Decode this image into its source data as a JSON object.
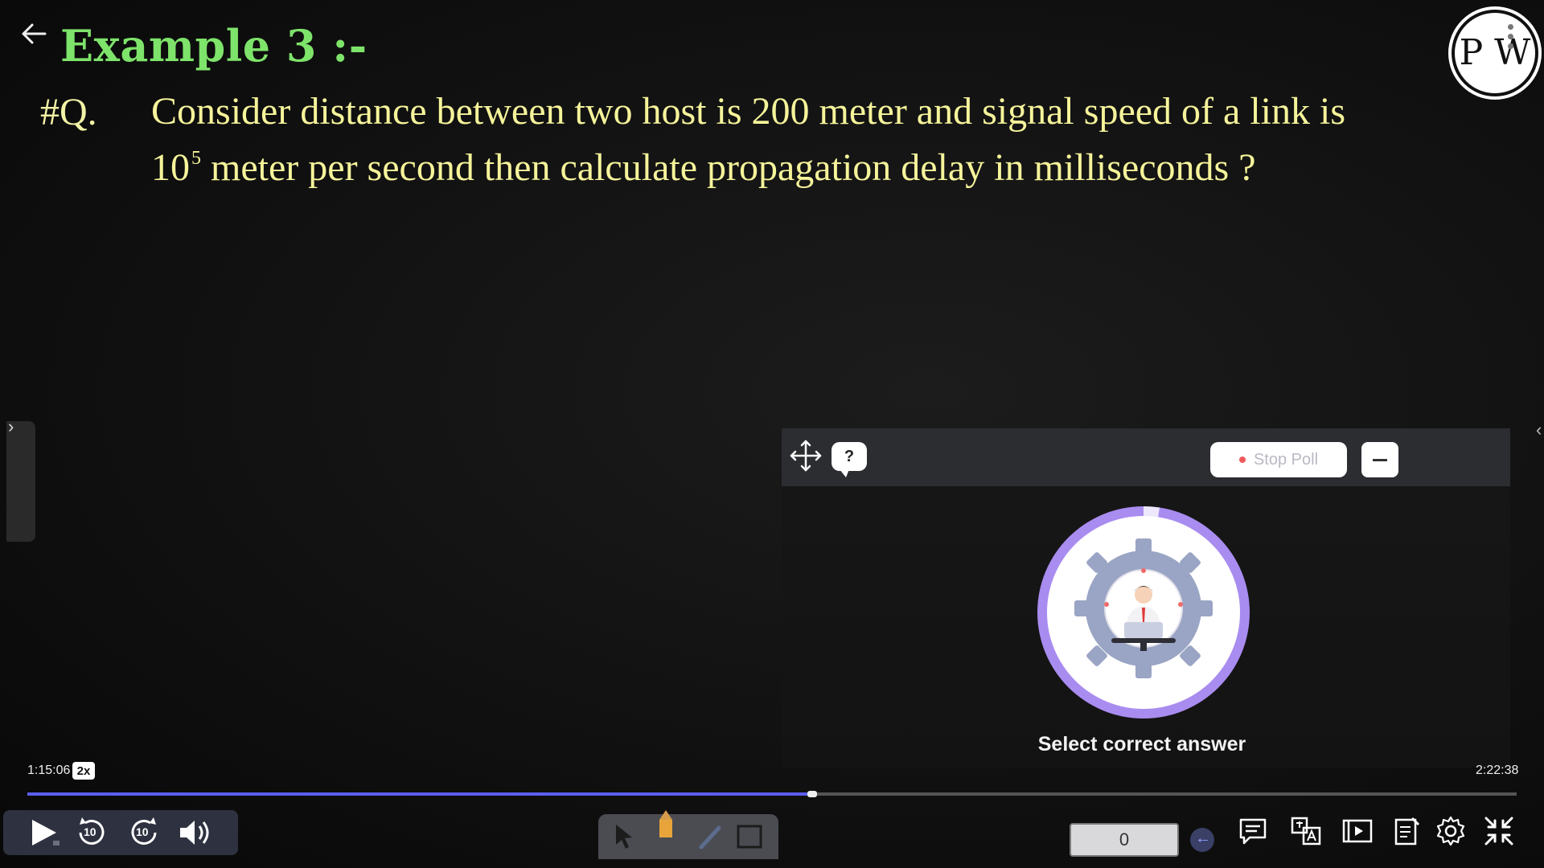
{
  "lecture": {
    "title": "Example 3 :-",
    "question_label": "#Q.",
    "question_line1": "Consider distance between two host is 200 meter and signal speed of a link is",
    "question_line2_base": "10",
    "question_line2_exp": "5",
    "question_line2_rest": " meter per second then calculate propagation delay in milliseconds ?",
    "logo_letters": "P W"
  },
  "poll": {
    "help_label": "?",
    "stop_label": "Stop Poll",
    "caption": "Select correct answer"
  },
  "player": {
    "current_time": "1:15:06",
    "speed": "2x",
    "total_time": "2:22:38",
    "progress_fraction": 0.527,
    "rewind_label": "10",
    "forward_label": "10",
    "answer_count": "0",
    "accent_color": "#5b5ef0"
  },
  "icons": [
    "back-arrow-icon",
    "move-icon",
    "play-icon",
    "rewind-10-icon",
    "forward-10-icon",
    "volume-icon",
    "cursor-icon",
    "pencil-icon",
    "marker-icon",
    "rectangle-icon",
    "chat-icon",
    "translate-icon",
    "slides-icon",
    "notes-icon",
    "settings-icon",
    "exit-fullscreen-icon"
  ]
}
